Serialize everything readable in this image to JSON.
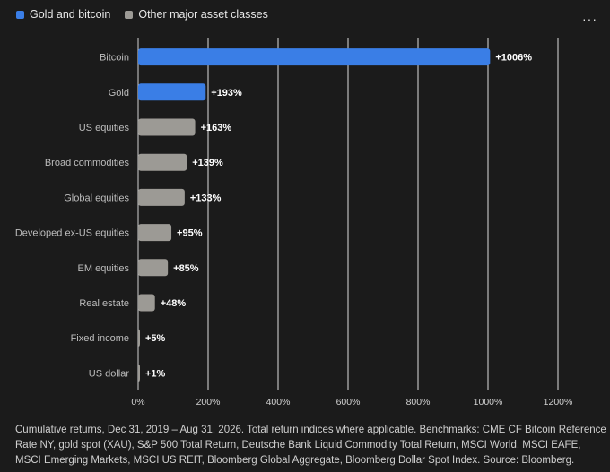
{
  "legend": {
    "items": [
      {
        "label": "Gold and bitcoin",
        "color": "#3a7ee6"
      },
      {
        "label": "Other major asset classes",
        "color": "#9c9a95"
      }
    ]
  },
  "menu": {
    "label": "···",
    "icon": "more-icon"
  },
  "chart_data": {
    "type": "bar",
    "orientation": "horizontal",
    "categories": [
      "Bitcoin",
      "Gold",
      "US equities",
      "Broad commodities",
      "Global equities",
      "Developed ex-US equities",
      "EM equities",
      "Real estate",
      "Fixed income",
      "US dollar"
    ],
    "values": [
      1006,
      193,
      163,
      139,
      133,
      95,
      85,
      48,
      5,
      1
    ],
    "value_labels": [
      "+1006%",
      "+193%",
      "+163%",
      "+139%",
      "+133%",
      "+95%",
      "+85%",
      "+48%",
      "+5%",
      "+1%"
    ],
    "groups": [
      "Gold and bitcoin",
      "Gold and bitcoin",
      "Other major asset classes",
      "Other major asset classes",
      "Other major asset classes",
      "Other major asset classes",
      "Other major asset classes",
      "Other major asset classes",
      "Other major asset classes",
      "Other major asset classes"
    ],
    "xlim": [
      0,
      1200
    ],
    "xticks": [
      0,
      200,
      400,
      600,
      800,
      1000,
      1200
    ],
    "xtick_labels": [
      "0%",
      "200%",
      "400%",
      "600%",
      "800%",
      "1000%",
      "1200%"
    ],
    "grid": true,
    "legend_position": "top-left",
    "colors": {
      "highlight": "#3a7ee6",
      "other": "#9c9a95",
      "grid": "#ffffff",
      "background": "#1b1b1b"
    }
  },
  "caption": "Cumulative returns, Dec 31, 2019 – Aug 31, 2026. Total return indices where applicable. Benchmarks: CME CF Bitcoin Reference Rate NY, gold spot (XAU), S&P 500 Total Return, Deutsche Bank Liquid Commodity Total Return, MSCI World, MSCI EAFE, MSCI Emerging Markets, MSCI US REIT, Bloomberg Global Aggregate, Bloomberg Dollar Spot Index. Source: Bloomberg."
}
